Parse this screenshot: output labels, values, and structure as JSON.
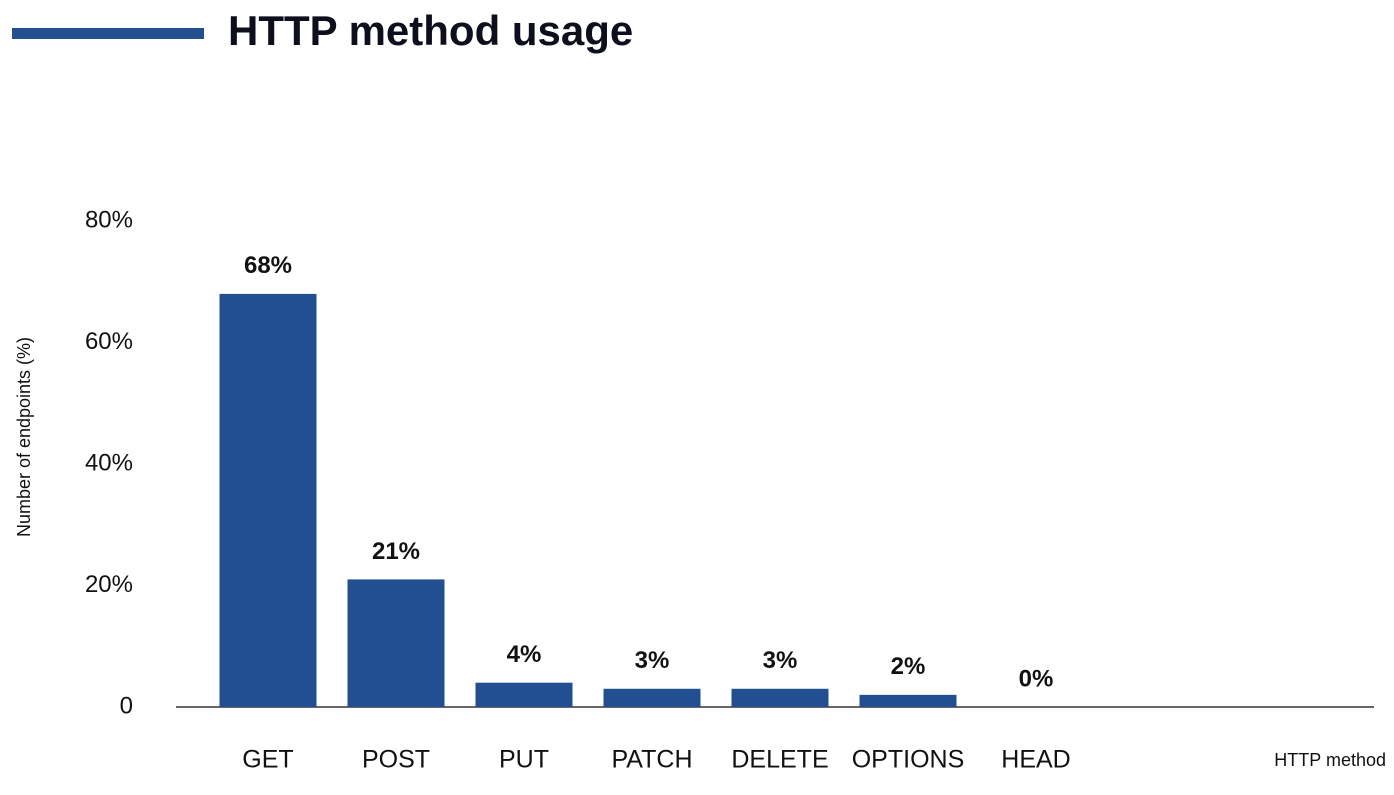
{
  "chart_data": {
    "type": "bar",
    "title": "HTTP method usage",
    "x_label": "HTTP method",
    "y_label": "Number of endpoints (%)",
    "categories": [
      "GET",
      "POST",
      "PUT",
      "PATCH",
      "DELETE",
      "OPTIONS",
      "HEAD"
    ],
    "values": [
      68,
      21,
      4,
      3,
      3,
      2,
      0
    ],
    "value_labels": [
      "68%",
      "21%",
      "4%",
      "3%",
      "3%",
      "2%",
      "0%"
    ],
    "color": "#214f8f",
    "ylim": [
      0,
      80
    ],
    "yticks": [
      0,
      {
        "value": 20,
        "label": "20%"
      },
      {
        "value": 40,
        "label": "40%"
      },
      {
        "value": 60,
        "label": "60%"
      },
      {
        "value": 80,
        "label": "80%"
      }
    ],
    "grid": false
  }
}
